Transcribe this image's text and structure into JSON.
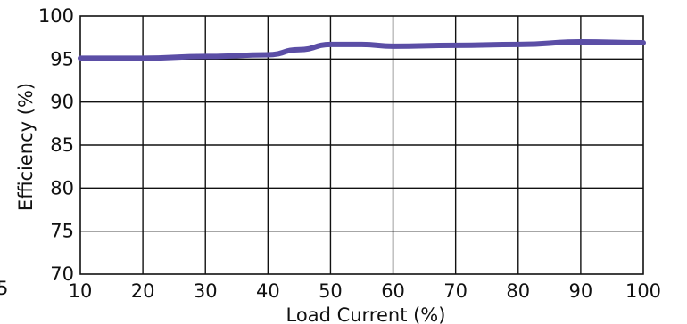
{
  "chart_data": {
    "type": "line",
    "title": "",
    "xlabel": "Load Current (%)",
    "ylabel": "Efficiency (%)",
    "xlim": [
      10,
      100
    ],
    "ylim": [
      70,
      100
    ],
    "x_ticks": [
      10,
      20,
      30,
      40,
      50,
      60,
      70,
      80,
      90,
      100
    ],
    "y_ticks": [
      70,
      75,
      80,
      85,
      90,
      95,
      100
    ],
    "grid": true,
    "series": [
      {
        "color": "#5b4ea6",
        "x": [
          10,
          20,
          30,
          40,
          45,
          50,
          55,
          60,
          70,
          80,
          90,
          100
        ],
        "y": [
          95.1,
          95.1,
          95.3,
          95.5,
          96.1,
          96.7,
          96.7,
          96.5,
          96.6,
          96.7,
          97.0,
          96.9
        ]
      }
    ],
    "stray_label": "5"
  }
}
